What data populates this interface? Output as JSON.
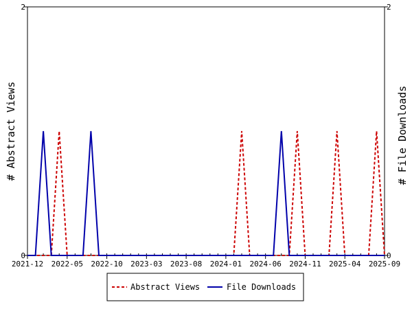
{
  "chart_data": {
    "type": "line",
    "x_ticks": [
      "2021-12",
      "2022-05",
      "2022-10",
      "2023-03",
      "2023-08",
      "2024-01",
      "2024-06",
      "2024-11",
      "2025-04",
      "2025-09"
    ],
    "x_range": [
      "2021-12",
      "2025-09"
    ],
    "y_left": {
      "label": "# Abstract Views",
      "range": [
        0,
        2
      ],
      "ticks": [
        "0",
        "2"
      ]
    },
    "y_right": {
      "label": "# File Downloads",
      "range": [
        0,
        2
      ],
      "ticks": [
        "0",
        "2"
      ]
    },
    "grid": false,
    "legend_position": "bottom",
    "series": [
      {
        "name": "Abstract Views",
        "axis": "left",
        "color": "#cc0000",
        "style": "dashed",
        "x": [
          "2021-12",
          "2022-01",
          "2022-02",
          "2022-03",
          "2022-04",
          "2022-05",
          "2022-06",
          "2022-07",
          "2022-08",
          "2022-09",
          "2022-10",
          "2022-11",
          "2022-12",
          "2023-01",
          "2023-02",
          "2023-03",
          "2023-04",
          "2023-05",
          "2023-06",
          "2023-07",
          "2023-08",
          "2023-09",
          "2023-10",
          "2023-11",
          "2023-12",
          "2024-01",
          "2024-02",
          "2024-03",
          "2024-04",
          "2024-05",
          "2024-06",
          "2024-07",
          "2024-08",
          "2024-09",
          "2024-10",
          "2024-11",
          "2024-12",
          "2025-01",
          "2025-02",
          "2025-03",
          "2025-04",
          "2025-05",
          "2025-06",
          "2025-07",
          "2025-08",
          "2025-09"
        ],
        "values": [
          0,
          0,
          0,
          0,
          1,
          0,
          0,
          0,
          0,
          0,
          0,
          0,
          0,
          0,
          0,
          0,
          0,
          0,
          0,
          0,
          0,
          0,
          0,
          0,
          0,
          0,
          0,
          1,
          0,
          0,
          0,
          0,
          0,
          0,
          1,
          0,
          0,
          0,
          0,
          1,
          0,
          0,
          0,
          0,
          1,
          0
        ]
      },
      {
        "name": "File Downloads",
        "axis": "right",
        "color": "#0000aa",
        "style": "solid",
        "x": [
          "2021-12",
          "2022-01",
          "2022-02",
          "2022-03",
          "2022-04",
          "2022-05",
          "2022-06",
          "2022-07",
          "2022-08",
          "2022-09",
          "2022-10",
          "2022-11",
          "2022-12",
          "2023-01",
          "2023-02",
          "2023-03",
          "2023-04",
          "2023-05",
          "2023-06",
          "2023-07",
          "2023-08",
          "2023-09",
          "2023-10",
          "2023-11",
          "2023-12",
          "2024-01",
          "2024-02",
          "2024-03",
          "2024-04",
          "2024-05",
          "2024-06",
          "2024-07",
          "2024-08",
          "2024-09",
          "2024-10",
          "2024-11",
          "2024-12",
          "2025-01",
          "2025-02",
          "2025-03",
          "2025-04",
          "2025-05",
          "2025-06",
          "2025-07",
          "2025-08",
          "2025-09"
        ],
        "values": [
          0,
          0,
          1,
          0,
          0,
          0,
          0,
          0,
          1,
          0,
          0,
          0,
          0,
          0,
          0,
          0,
          0,
          0,
          0,
          0,
          0,
          0,
          0,
          0,
          0,
          0,
          0,
          0,
          0,
          0,
          0,
          0,
          1,
          0,
          0,
          0,
          0,
          0,
          0,
          0,
          0,
          0,
          0,
          0,
          0,
          0
        ]
      }
    ]
  }
}
